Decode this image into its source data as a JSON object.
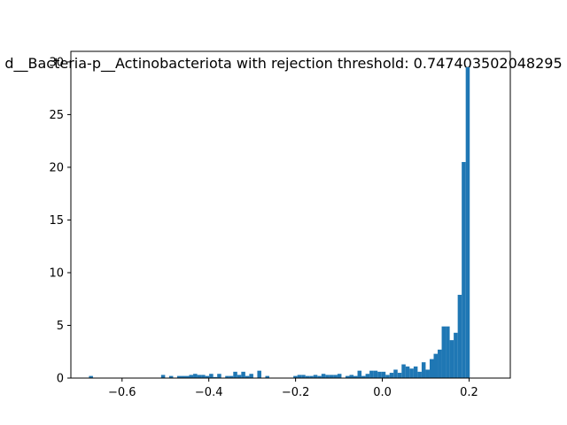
{
  "chart_data": {
    "type": "bar",
    "title": "d__Bacteria-p__Actinobacteriota with rejection threshold: 0.747403502048295",
    "xlabel": "",
    "ylabel": "",
    "xlim": [
      -0.718,
      0.295
    ],
    "ylim": [
      0,
      31
    ],
    "grid": false,
    "color": "#1f77b4",
    "x_ticks": [
      {
        "value": -0.6,
        "label": "−0.6"
      },
      {
        "value": -0.4,
        "label": "−0.4"
      },
      {
        "value": -0.2,
        "label": "−0.2"
      },
      {
        "value": 0.0,
        "label": "0.0"
      },
      {
        "value": 0.2,
        "label": "0.2"
      }
    ],
    "y_ticks": [
      {
        "value": 0,
        "label": "0"
      },
      {
        "value": 5,
        "label": "5"
      },
      {
        "value": 10,
        "label": "10"
      },
      {
        "value": 15,
        "label": "15"
      },
      {
        "value": 20,
        "label": "20"
      },
      {
        "value": 25,
        "label": "25"
      },
      {
        "value": 30,
        "label": "30"
      }
    ],
    "bin_start": -0.6763,
    "bin_width": 0.00924,
    "values": [
      0.2,
      0,
      0,
      0,
      0,
      0,
      0,
      0,
      0,
      0,
      0,
      0,
      0,
      0,
      0,
      0,
      0,
      0,
      0.3,
      0,
      0.2,
      0,
      0.2,
      0.2,
      0.2,
      0.3,
      0.4,
      0.3,
      0.3,
      0.2,
      0.4,
      0.1,
      0.4,
      0,
      0.2,
      0.2,
      0.6,
      0.3,
      0.6,
      0.2,
      0.4,
      0,
      0.7,
      0,
      0.2,
      0,
      0,
      0,
      0,
      0,
      0,
      0.2,
      0.3,
      0.3,
      0.2,
      0.2,
      0.3,
      0.2,
      0.4,
      0.3,
      0.3,
      0.3,
      0.4,
      0,
      0.2,
      0.3,
      0.2,
      0.7,
      0.2,
      0.4,
      0.7,
      0.7,
      0.6,
      0.6,
      0.3,
      0.5,
      0.8,
      0.5,
      1.3,
      1.1,
      0.9,
      1.1,
      0.6,
      1.5,
      0.8,
      1.8,
      2.3,
      2.7,
      4.9,
      4.9,
      3.6,
      4.3,
      7.9,
      20.5,
      29.5
    ]
  }
}
